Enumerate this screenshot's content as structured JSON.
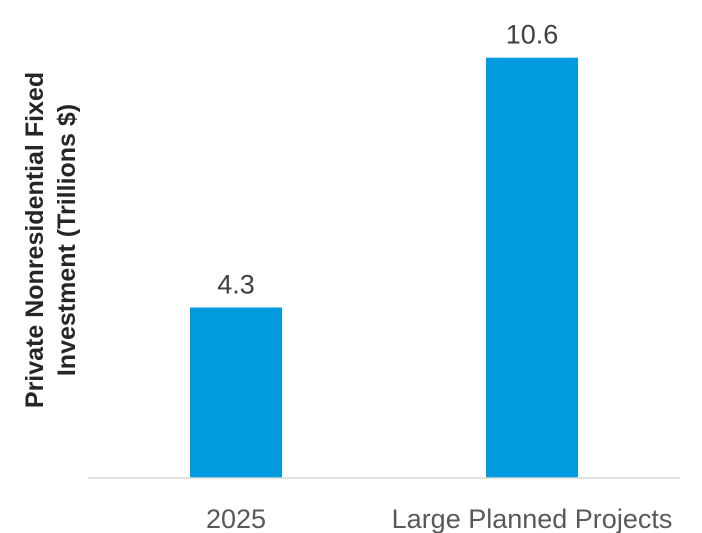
{
  "chart_data": {
    "type": "bar",
    "categories": [
      "2025",
      "Large Planned Projects"
    ],
    "values": [
      4.3,
      10.6
    ],
    "value_labels": [
      "4.3",
      "10.6"
    ],
    "ylabel_lines": [
      "Private Nonresidential Fixed",
      "Investment (Trillions $)"
    ],
    "ylim": [
      0,
      11.5
    ],
    "grid": false,
    "bar_color": "#009ADE",
    "axis_color": "#D9D9D9"
  }
}
